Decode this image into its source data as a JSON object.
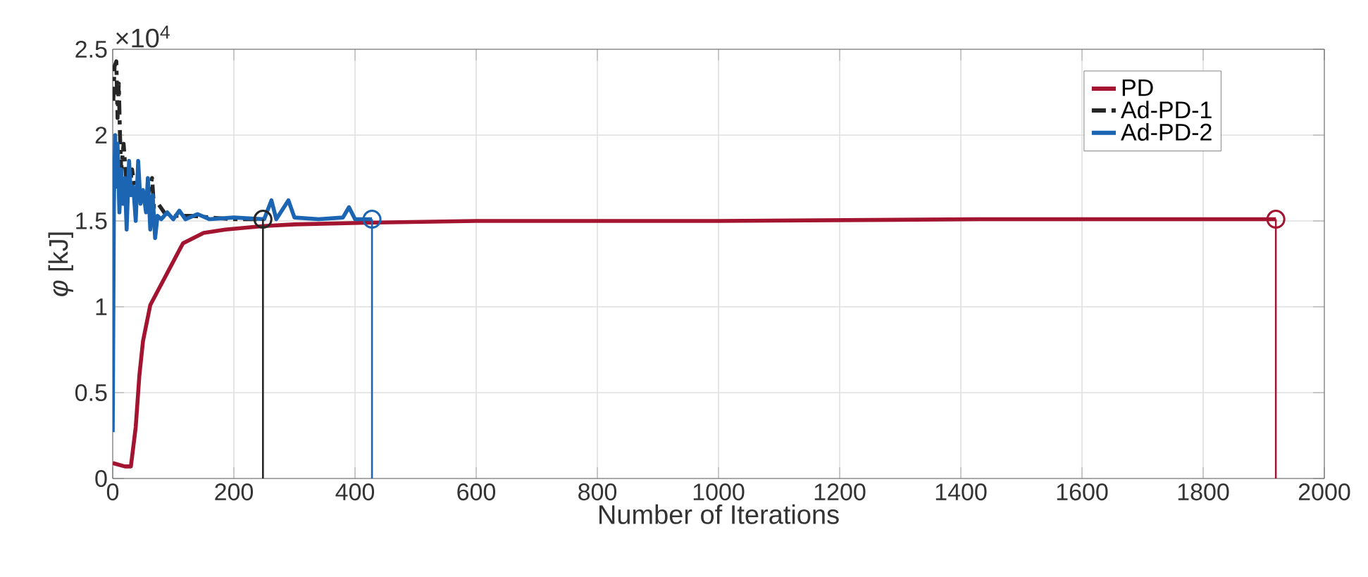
{
  "chart_data": {
    "type": "line",
    "xlabel": "Number of Iterations",
    "ylabel": "*φ* [kJ]",
    "annotations": [
      "×10$^{4}$"
    ],
    "xlim": [
      0,
      2000
    ],
    "xticks": [
      0,
      200,
      400,
      600,
      800,
      1000,
      1200,
      1400,
      1600,
      1800,
      2000
    ],
    "ylim": [
      0,
      2.5
    ],
    "yticks": [
      0,
      0.5,
      1,
      1.5,
      2,
      2.5
    ],
    "grid": true,
    "legend": "top right",
    "series": [
      {
        "name": "PD",
        "color": "#a2142f",
        "line_style": "solid",
        "x": [
          0,
          10,
          20,
          30,
          38,
          44,
          50,
          62,
          86,
          116,
          150,
          186,
          249,
          300,
          420,
          600,
          1000,
          1430,
          1440,
          1920
        ],
        "values": [
          0.09,
          0.08,
          0.07,
          0.07,
          0.3,
          0.6,
          0.8,
          1.01,
          1.17,
          1.37,
          1.43,
          1.45,
          1.47,
          1.48,
          1.49,
          1.5,
          1.5,
          1.51,
          1.51,
          1.51
        ]
      },
      {
        "name": "Ad-PD-1",
        "color": "#262626",
        "line_style": "dashed",
        "x": [
          1,
          3,
          6,
          8,
          10,
          12,
          14,
          18,
          22,
          28,
          32,
          38,
          45,
          52,
          58,
          65,
          68,
          75,
          85,
          100,
          130,
          160,
          200,
          248
        ],
        "values": [
          2.2,
          2.4,
          2.43,
          2.1,
          2.3,
          2.0,
          1.8,
          1.95,
          1.75,
          1.7,
          1.8,
          1.65,
          1.7,
          1.62,
          1.65,
          1.75,
          1.58,
          1.6,
          1.55,
          1.53,
          1.53,
          1.52,
          1.51,
          1.51
        ]
      },
      {
        "name": "Ad-PD-2",
        "color": "#1b65b3",
        "line_style": "solid",
        "x": [
          0,
          2,
          4,
          6,
          8,
          11,
          14,
          17,
          20,
          23,
          27,
          30,
          34,
          38,
          42,
          46,
          50,
          55,
          58,
          62,
          66,
          70,
          74,
          80,
          90,
          100,
          110,
          120,
          140,
          160,
          200,
          250,
          262,
          270,
          290,
          300,
          340,
          380,
          390,
          400,
          428
        ],
        "values": [
          0.27,
          1.6,
          2.0,
          1.7,
          1.95,
          1.55,
          1.8,
          1.6,
          1.75,
          1.45,
          1.85,
          1.65,
          1.7,
          1.5,
          1.85,
          1.6,
          1.68,
          1.55,
          1.75,
          1.45,
          1.65,
          1.4,
          1.53,
          1.51,
          1.55,
          1.51,
          1.56,
          1.51,
          1.54,
          1.51,
          1.52,
          1.51,
          1.62,
          1.51,
          1.62,
          1.52,
          1.51,
          1.52,
          1.58,
          1.51,
          1.51
        ]
      },
      {
        "type": "lollipop",
        "color": "#262626",
        "marker": "circle",
        "x": [
          248
        ],
        "values": [
          1.51
        ]
      },
      {
        "type": "lollipop",
        "color": "#1b65b3",
        "marker": "circle",
        "x": [
          428
        ],
        "values": [
          1.51
        ]
      },
      {
        "type": "lollipop",
        "color": "#a2142f",
        "marker": "circle",
        "x": [
          1920
        ],
        "values": [
          1.51
        ]
      }
    ]
  }
}
